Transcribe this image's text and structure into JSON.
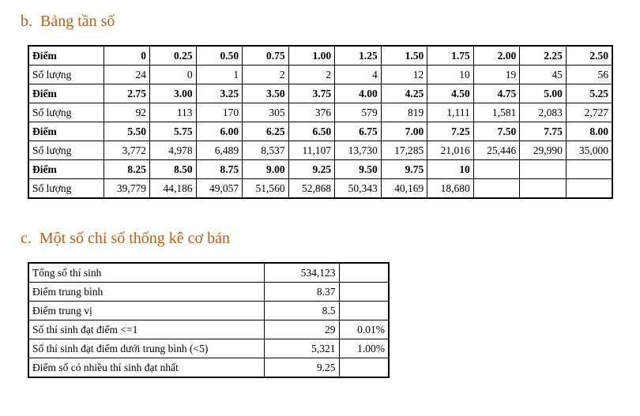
{
  "section_b": {
    "heading": "b.  Bảng tần số",
    "table": {
      "rows": [
        [
          "Điểm",
          "0",
          "0.25",
          "0.50",
          "0.75",
          "1.00",
          "1.25",
          "1.50",
          "1.75",
          "2.00",
          "2.25",
          "2.50"
        ],
        [
          "Số lượng",
          "24",
          "0",
          "1",
          "2",
          "2",
          "4",
          "12",
          "10",
          "19",
          "45",
          "56"
        ],
        [
          "Điểm",
          "2.75",
          "3.00",
          "3.25",
          "3.50",
          "3.75",
          "4.00",
          "4.25",
          "4.50",
          "4.75",
          "5.00",
          "5.25"
        ],
        [
          "Số lượng",
          "92",
          "113",
          "170",
          "305",
          "376",
          "579",
          "819",
          "1,111",
          "1,581",
          "2,083",
          "2,727"
        ],
        [
          "Điểm",
          "5.50",
          "5.75",
          "6.00",
          "6.25",
          "6.50",
          "6.75",
          "7.00",
          "7.25",
          "7.50",
          "7.75",
          "8.00"
        ],
        [
          "Số lượng",
          "3,772",
          "4,978",
          "6,489",
          "8,537",
          "11,107",
          "13,730",
          "17,285",
          "21,016",
          "25,446",
          "29,990",
          "35,000"
        ],
        [
          "Điểm",
          "8.25",
          "8.50",
          "8.75",
          "9.00",
          "9.25",
          "9.50",
          "9.75",
          "10"
        ],
        [
          "Số lượng",
          "39,779",
          "44,186",
          "49,057",
          "51,560",
          "52,868",
          "50,343",
          "40,169",
          "18,680"
        ]
      ]
    }
  },
  "section_c": {
    "heading": "c.  Một số chỉ số thống kê cơ bản",
    "table": {
      "rows": [
        [
          "Tổng số thí sinh",
          "534,123"
        ],
        [
          "Điểm trung bình",
          "8.37"
        ],
        [
          "Điểm trung vị",
          "8.5"
        ],
        [
          "Số thí sinh đạt điểm <=1",
          "29",
          "0.01%"
        ],
        [
          "Số thí sinh đạt điểm dưới trung bình (<5)",
          "5,321",
          "1.00%"
        ],
        [
          "Điểm số có nhiều thí sinh đạt nhất",
          "9.25"
        ]
      ]
    }
  }
}
